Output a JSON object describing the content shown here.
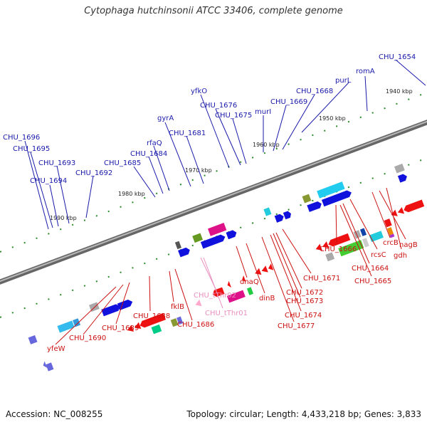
{
  "title": "Cytophaga hutchinsonii ATCC 33406, complete genome",
  "accession": "Accession: NC_008255",
  "summary": "Topology: circular; Length: 4,433,218 bp; Genes: 3,833",
  "colors": {
    "forward_label": "#1a1aaa",
    "reverse_label": "#cc1111",
    "trna_label": "#e890c0",
    "backbone": "#8a8a8a",
    "ticks": "#2a8a2a"
  },
  "kbp_labels": [
    "1940 kbp",
    "1950 kbp",
    "1960 kbp",
    "1970 kbp",
    "1980 kbp",
    "1990 kbp"
  ],
  "forward_labels": [
    "CHU_1654",
    "romA",
    "purL",
    "CHU_1668",
    "CHU_1669",
    "murI",
    "CHU_1675",
    "CHU_1676",
    "yfkO",
    "gyrA",
    "CHU_1681",
    "rfaQ",
    "CHU_1684",
    "CHU_1685",
    "CHU_1692",
    "CHU_1693",
    "CHU_1694",
    "CHU_1695",
    "CHU_1696"
  ],
  "reverse_labels": [
    "nagB",
    "crcB",
    "gdh",
    "rcsC",
    "CHU_1664",
    "CHU_1665",
    "CHU_1666",
    "CHU_1671",
    "CHU_1672",
    "CHU_1673",
    "CHU_1674",
    "CHU_1677",
    "dinB",
    "dnaQ",
    "CHU_1686",
    "fklB",
    "CHU_1688",
    "CHU_1689",
    "CHU_1690",
    "yfeW"
  ],
  "trna_labels": [
    "CHU_tThr02",
    "CHU_tThr01"
  ]
}
